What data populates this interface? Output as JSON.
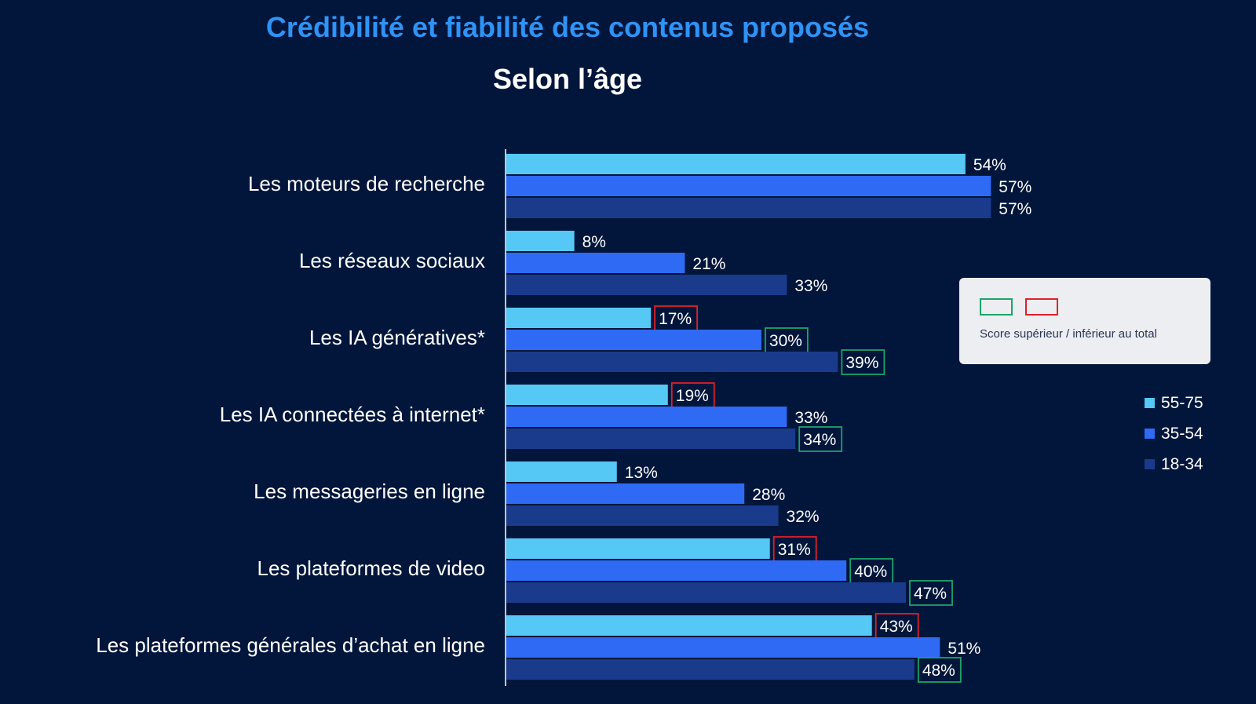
{
  "header": {
    "title": "Crédibilité et fiabilité des contenus proposés",
    "subtitle": "Selon l’âge"
  },
  "colors": {
    "background": "#02163b",
    "title": "#2f93f5",
    "s55_75": "#56c8f5",
    "s35_54": "#2f6af5",
    "s18_34": "#1a3a8c",
    "above": "#1fa36a",
    "below": "#e0202a"
  },
  "chart_data": {
    "type": "bar",
    "orientation": "horizontal",
    "title": "Crédibilité et fiabilité des contenus proposés",
    "subtitle": "Selon l’âge",
    "unit": "%",
    "xlim": [
      0,
      60
    ],
    "categories": [
      "Les moteurs de recherche",
      "Les réseaux sociaux",
      "Les IA génératives*",
      "Les IA connectées à internet*",
      "Les messageries en ligne",
      "Les plateformes de video",
      "Les plateformes générales d’achat en ligne"
    ],
    "series": [
      {
        "name": "55-75",
        "values": [
          54,
          8,
          17,
          19,
          13,
          31,
          43
        ],
        "flags": [
          "",
          "",
          "below",
          "below",
          "",
          "below",
          "below"
        ]
      },
      {
        "name": "35-54",
        "values": [
          57,
          21,
          30,
          33,
          28,
          40,
          51
        ],
        "flags": [
          "",
          "",
          "above",
          "",
          "",
          "above",
          ""
        ]
      },
      {
        "name": "18-34",
        "values": [
          57,
          33,
          39,
          34,
          32,
          47,
          48
        ],
        "flags": [
          "",
          "",
          "above",
          "above",
          "",
          "above",
          "above"
        ]
      }
    ],
    "legend_placement": "right",
    "grid": false
  },
  "legend": {
    "score_text": "Score supérieur / inférieur au total",
    "series": [
      "55-75",
      "35-54",
      "18-34"
    ]
  }
}
